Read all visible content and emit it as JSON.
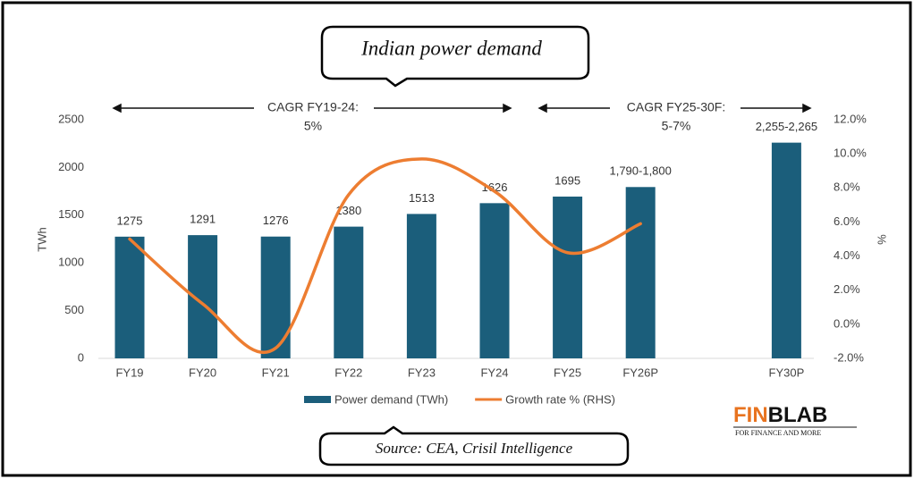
{
  "chart_data": {
    "type": "bar",
    "title": "Indian power demand",
    "annotations": [
      {
        "lines": [
          "CAGR FY19-24:",
          "5%"
        ]
      },
      {
        "lines": [
          "CAGR FY25-30F:",
          "5-7%"
        ]
      }
    ],
    "categories": [
      "FY19",
      "FY20",
      "FY21",
      "FY22",
      "FY23",
      "FY24",
      "FY25",
      "FY26P",
      null,
      "FY30P"
    ],
    "series": [
      {
        "name": "Power demand (TWh)",
        "type": "bar",
        "color": "#1b5e7b",
        "values": [
          1275,
          1291,
          1276,
          1380,
          1513,
          1626,
          1695,
          1795,
          null,
          2260
        ],
        "value_labels": [
          "1275",
          "1291",
          "1276",
          "1380",
          "1513",
          "1626",
          "1695",
          "1,790-1,800",
          null,
          "2,255-2,265"
        ]
      },
      {
        "name": "Growth rate % (RHS)",
        "type": "line",
        "axis": "y2",
        "color": "#ed7d31",
        "values": [
          5.0,
          1.2,
          -1.4,
          7.6,
          9.7,
          7.8,
          4.2,
          5.9,
          null,
          null
        ]
      }
    ],
    "ylabel": "TWh",
    "y2label": "%",
    "ylim": [
      0,
      2500
    ],
    "yticks": [
      0,
      500,
      1000,
      1500,
      2000,
      2500
    ],
    "y2lim": [
      -2,
      12
    ],
    "y2ticks": [
      {
        "value": -2,
        "label": "-2.0%"
      },
      {
        "value": 0,
        "label": "0.0%"
      },
      {
        "value": 2,
        "label": "2.0%"
      },
      {
        "value": 4,
        "label": "4.0%"
      },
      {
        "value": 6,
        "label": "6.0%"
      },
      {
        "value": 8,
        "label": "8.0%"
      },
      {
        "value": 10,
        "label": "10.0%"
      },
      {
        "value": 12,
        "label": "12.0%"
      }
    ],
    "grid": false,
    "source": "Source: CEA, Crisil Intelligence",
    "logo": {
      "parts": [
        "FIN",
        "BLAB"
      ],
      "tagline": "FOR FINANCE AND MORE"
    }
  }
}
